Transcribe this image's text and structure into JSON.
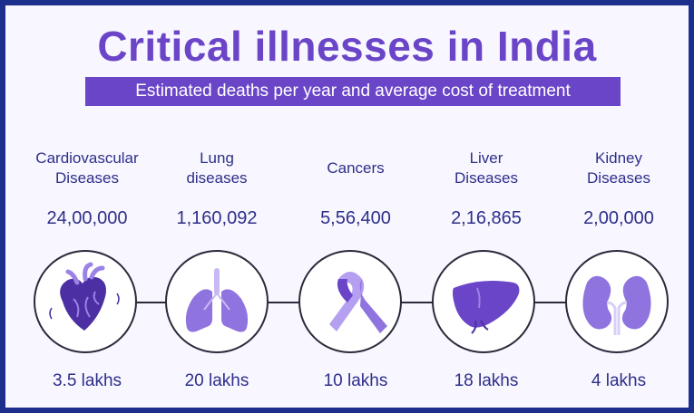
{
  "header": {
    "title": "Critical illnesses in India",
    "subtitle": "Estimated deaths per year and average cost of treatment"
  },
  "diseases": [
    {
      "name_line1": "Cardiovascular",
      "name_line2": "Diseases",
      "deaths": "24,00,000",
      "cost": "3.5 lakhs",
      "icon": "heart-icon"
    },
    {
      "name_line1": "Lung",
      "name_line2": "diseases",
      "deaths": "1,160,092",
      "cost": "20 lakhs",
      "icon": "lungs-icon"
    },
    {
      "name_line1": "Cancers",
      "name_line2": "",
      "deaths": "5,56,400",
      "cost": "10 lakhs",
      "icon": "cancer-ribbon-icon"
    },
    {
      "name_line1": "Liver",
      "name_line2": "Diseases",
      "deaths": "2,16,865",
      "cost": "18 lakhs",
      "icon": "liver-icon"
    },
    {
      "name_line1": "Kidney",
      "name_line2": "Diseases",
      "deaths": "2,00,000",
      "cost": "4 lakhs",
      "icon": "kidney-icon"
    }
  ],
  "colors": {
    "title": "#6a45c8",
    "accent_dark": "#4b2fa3",
    "accent_light": "#9b82e6",
    "text": "#2d2f8a",
    "border": "#1c2f8c"
  }
}
